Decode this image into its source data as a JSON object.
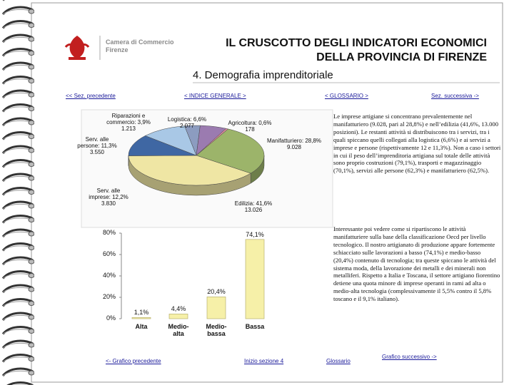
{
  "header": {
    "logo": [
      "Camera di Commercio",
      "Firenze"
    ],
    "title": [
      "IL CRUSCOTTO DEGLI INDICATORI ECONOMICI",
      "DELLA PROVINCIA DI FIRENZE"
    ],
    "subtitle": "4. Demografia imprenditoriale"
  },
  "nav": [
    "<< Sez. precedente",
    "< INDICE GENERALE >",
    "< GLOSSARIO >",
    "Sez. successiva ->"
  ],
  "chart_data": [
    {
      "type": "pie",
      "categories": [
        "Riparazioni e commercio: 3,9%",
        "Logistica: 6,6%",
        "Agricoltura: 0,6%",
        "Manifatturiero: 28,8%",
        "Edilizia: 41,6%",
        "Serv. alle imprese: 12,2%",
        "Serv. alle persone: 11,3%"
      ],
      "values": [
        1213,
        2077,
        178,
        9028,
        13026,
        3830,
        3550
      ],
      "value_labels": [
        "1.213",
        "2.077",
        "178",
        "9.028",
        "13.026",
        "3.830",
        "3.550"
      ],
      "colors": [
        "#8c9cc0",
        "#9b7bb0",
        "#e08aa0",
        "#9cb46a",
        "#efe6a4",
        "#3f67a3",
        "#a9c8e6"
      ]
    },
    {
      "type": "bar",
      "categories": [
        "Alta",
        "Medio-alta",
        "Medio-bassa",
        "Bassa"
      ],
      "values": [
        1.1,
        4.4,
        20.4,
        74.1
      ],
      "value_labels": [
        "1,1%",
        "4,4%",
        "20,4%",
        "74,1%"
      ],
      "color": "#f6f0a8",
      "ylim": [
        0,
        80
      ],
      "yticks": [
        {
          "value": 0,
          "label": "0%"
        },
        {
          "value": 20,
          "label": "20%"
        },
        {
          "value": 40,
          "label": "40%"
        },
        {
          "value": 60,
          "label": "60%"
        },
        {
          "value": 80,
          "label": "80%"
        }
      ]
    }
  ],
  "paragraphs": [
    "Le imprese artigiane si concentrano prevalentemente nel manifatturiero (9.028, pari al 28,8%) e nell’edilizia (41,6%, 13.000 posizioni). Le restanti attività si distribuiscono tra i servizi, tra i quali spiccano quelli collegati alla logistica (6,6%) e ai servizi a imprese e persone (rispettivamente 12 e 11,3%). Non a caso i settori in cui il peso dell’imprenditoria artigiana sul totale delle attività sono proprio costruzioni (79,1%), trasporti e magazzinaggio (70,1%), servizi alle persone (62,3%) e manifatturiero (62,5%).",
    "Interessante poi vedere come si ripartiscono le attività manifatturiere sulla base della classificazione Oecd per livello tecnologico. Il nostro artigianato di produzione appare fortemente schiacciato sulle lavorazioni a basso (74,1%) e medio-basso (20,4%) contenuto di tecnologia; tra queste spiccano le attività del sistema moda, della lavorazione dei metalli e dei minerali non metalliferi. Rispetto a Italia e Toscana, il settore artigiano fiorentino detiene una quota minore di imprese operanti in rami ad alta o medio-alta tecnologia (complessivamente il 5,5% contro il 5,8% toscano e il 9,1% italiano)."
  ],
  "footer_nav": [
    "<- Grafico precedente",
    "Inizio sezione 4",
    "Glossario",
    "Grafico successivo ->"
  ]
}
